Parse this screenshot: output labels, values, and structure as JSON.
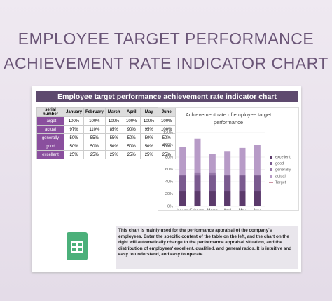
{
  "header": {
    "title_line1": "EMPLOYEE TARGET PERFORMANCE",
    "title_line2": "ACHIEVEMENT RATE INDICATOR CHART"
  },
  "sheet": {
    "title": "Employee target performance achievement rate indicator chart",
    "table": {
      "header": [
        "serial number",
        "January",
        "February",
        "March",
        "April",
        "May",
        "June"
      ],
      "rows": [
        [
          "Target",
          "100%",
          "100%",
          "100%",
          "100%",
          "100%",
          "100%"
        ],
        [
          "actual",
          "97%",
          "110%",
          "85%",
          "90%",
          "95%",
          "100%"
        ],
        [
          "generally",
          "50%",
          "55%",
          "55%",
          "50%",
          "50%",
          "50%"
        ],
        [
          "good",
          "50%",
          "50%",
          "50%",
          "50%",
          "50%",
          "50%"
        ],
        [
          "excellent",
          "25%",
          "25%",
          "25%",
          "25%",
          "25%",
          "25%"
        ]
      ]
    },
    "description": "This chart is mainly used for the performance appraisal of the company's employees. Enter the specific content of the table on the left, and the chart on the right will automatically change to the performance appraisal situation, and the distribution of employees' excellent, qualified, and general ratios. It is intuitive and easy to understand, and easy to operate."
  },
  "chart_data": {
    "type": "bar",
    "title": "Achievement rate of employee target performance",
    "categories": [
      "January",
      "February",
      "March",
      "April",
      "May",
      "June"
    ],
    "series": [
      {
        "name": "excellent",
        "color": "#5b3a6b",
        "values": [
          25,
          25,
          25,
          25,
          25,
          25
        ]
      },
      {
        "name": "good",
        "color": "#7a5a8f",
        "values": [
          50,
          50,
          50,
          50,
          50,
          50
        ]
      },
      {
        "name": "generally",
        "color": "#9677a8",
        "values": [
          50,
          55,
          55,
          50,
          50,
          50
        ]
      },
      {
        "name": "actual",
        "color": "#b79bc7",
        "values": [
          97,
          110,
          85,
          90,
          95,
          100
        ]
      },
      {
        "name": "Target",
        "type": "line",
        "color": "#9b2a4a",
        "values": [
          100,
          100,
          100,
          100,
          100,
          100
        ]
      }
    ],
    "ylim": [
      0,
      120
    ],
    "yticks": [
      {
        "value": 0,
        "label": "0%"
      },
      {
        "value": 20,
        "label": "20%"
      },
      {
        "value": 40,
        "label": "40%"
      },
      {
        "value": 60,
        "label": "60%"
      },
      {
        "value": 80,
        "label": "80%"
      },
      {
        "value": 100,
        "label": "100%"
      },
      {
        "value": 120,
        "label": "120%"
      }
    ],
    "grid": true,
    "legend": "right"
  }
}
